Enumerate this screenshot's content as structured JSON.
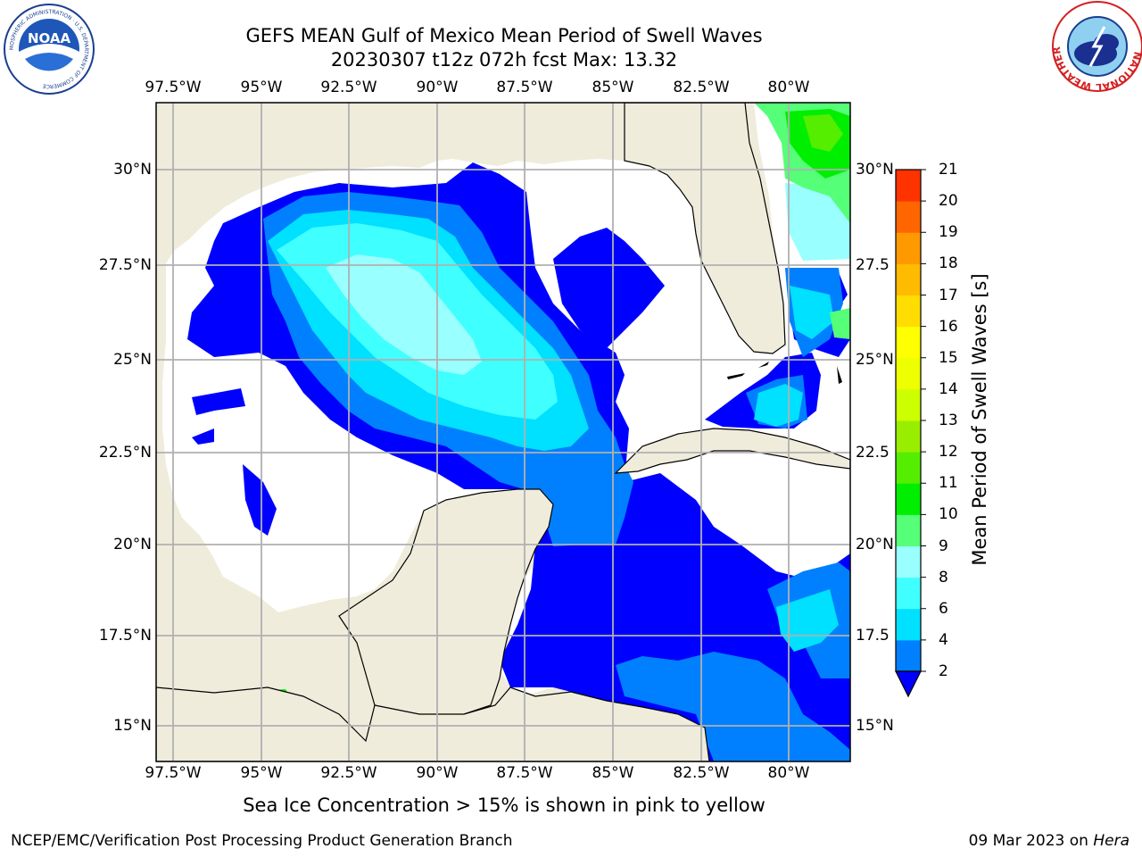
{
  "title_line1": "GEFS MEAN Gulf of Mexico Mean Period of Swell Waves",
  "title_line2": "20230307 t12z 072h fcst   Max: 13.32",
  "lon_ticks": [
    "97.5°W",
    "95°W",
    "92.5°W",
    "90°W",
    "87.5°W",
    "85°W",
    "82.5°W",
    "80°W"
  ],
  "lat_ticks_left": [
    "30°N",
    "27.5°N",
    "25°N",
    "22.5°N",
    "20°N",
    "17.5°N",
    "15°N"
  ],
  "lat_ticks_right": [
    "30°N",
    "27.5",
    "25°N",
    "22.5",
    "20°N",
    "17.5",
    "15°N"
  ],
  "colorbar": {
    "title": "Mean Period of Swell Waves [s]",
    "levels": [
      "2",
      "4",
      "6",
      "8",
      "9",
      "10",
      "11",
      "12",
      "13",
      "14",
      "15",
      "16",
      "17",
      "18",
      "19",
      "20",
      "21"
    ],
    "colors": [
      "#0080ff",
      "#00e0ff",
      "#40ffff",
      "#99ffff",
      "#55ff77",
      "#00ee00",
      "#55ee00",
      "#99ee00",
      "#ccff00",
      "#eeff00",
      "#ffff00",
      "#ffdd00",
      "#ffbb00",
      "#ff9900",
      "#ff6600",
      "#ff3300"
    ],
    "under_color": "#0000ff"
  },
  "note": "Sea Ice Concentration > 15% is shown in pink to yellow",
  "footer_left": "NCEP/EMC/Verification Post Processing Product Generation Branch",
  "footer_date": "09 Mar 2023 on ",
  "footer_machine": "Hera",
  "noaa_logo_text": "NOAA",
  "noaa_ring_text": "NATIONAL OCEANIC AND ATMOSPHERIC ADMINISTRATION · U.S. DEPARTMENT OF COMMERCE",
  "nws_ring_text": "NATIONAL WEATHER SERVICE"
}
